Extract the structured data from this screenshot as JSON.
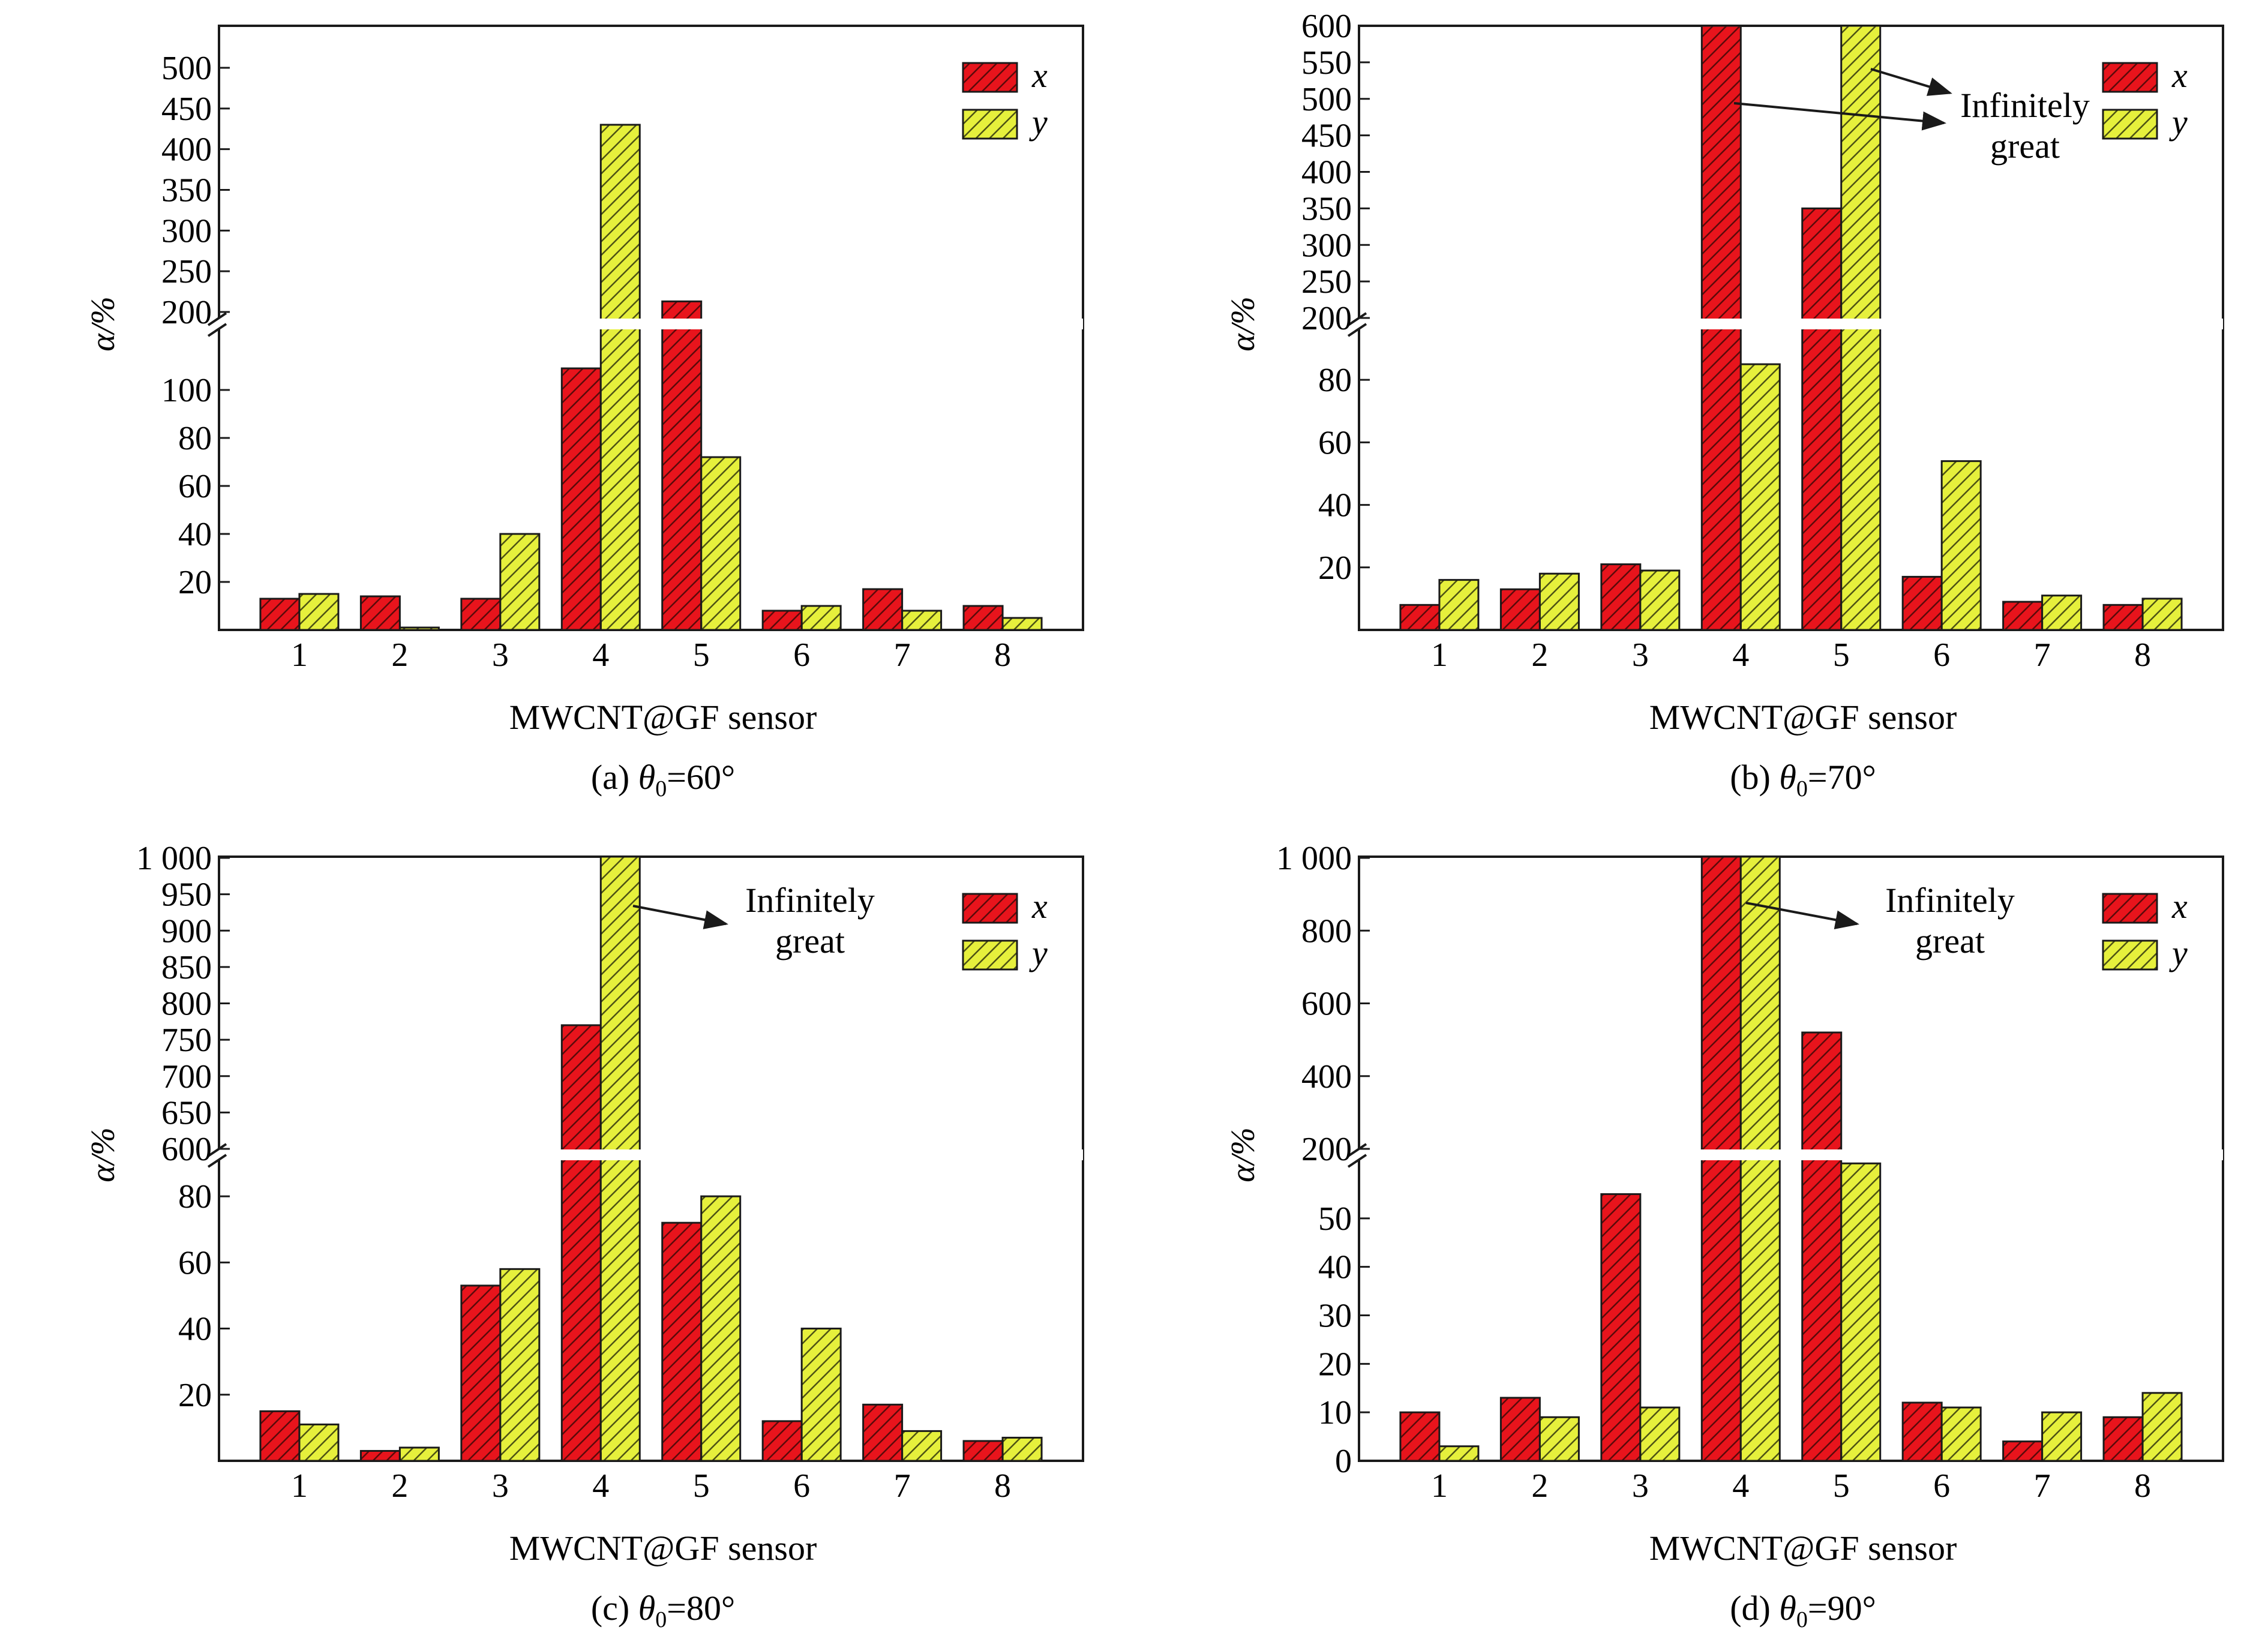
{
  "legend": {
    "x_label": "x",
    "y_label": "y"
  },
  "colors": {
    "x_bar": "#e8141c",
    "y_bar": "#e6f03c",
    "outline": "#1a1a1a",
    "background": "#ffffff"
  },
  "chart_data": [
    {
      "type": "bar",
      "id": "a",
      "caption_prefix": "(a) ",
      "caption_var": "θ",
      "caption_sub": "0",
      "caption_suffix": "=60°",
      "xlabel": "MWCNT@GF sensor",
      "ylabel": "α/%",
      "categories": [
        "1",
        "2",
        "3",
        "4",
        "5",
        "6",
        "7",
        "8"
      ],
      "series": [
        {
          "name": "x",
          "values": [
            13,
            14,
            13,
            109,
            213,
            8,
            17,
            10
          ]
        },
        {
          "name": "y",
          "values": [
            15,
            1,
            40,
            430,
            72,
            10,
            8,
            5
          ]
        }
      ],
      "y_axis_break": {
        "lower_range": [
          0,
          120
        ],
        "lower_ticks": [
          20,
          40,
          60,
          80,
          100
        ],
        "upper_range": [
          200,
          525
        ],
        "upper_ticks": [
          200,
          250,
          300,
          350,
          400,
          450,
          500
        ]
      },
      "annotation": null,
      "legend_position": "top-right"
    },
    {
      "type": "bar",
      "id": "b",
      "caption_prefix": "(b) ",
      "caption_var": "θ",
      "caption_sub": "0",
      "caption_suffix": "=70°",
      "xlabel": "MWCNT@GF sensor",
      "ylabel": "α/%",
      "categories": [
        "1",
        "2",
        "3",
        "4",
        "5",
        "6",
        "7",
        "8"
      ],
      "series": [
        {
          "name": "x",
          "values": [
            8,
            13,
            21,
            600,
            350,
            17,
            9,
            8
          ]
        },
        {
          "name": "y",
          "values": [
            16,
            18,
            19,
            85,
            600,
            54,
            11,
            10
          ]
        }
      ],
      "infinite": {
        "x": [
          4
        ],
        "y": [
          5
        ]
      },
      "y_axis_break": {
        "lower_range": [
          0,
          95
        ],
        "lower_ticks": [
          20,
          40,
          60,
          80
        ],
        "upper_range": [
          200,
          600
        ],
        "upper_ticks": [
          200,
          250,
          300,
          350,
          400,
          450,
          500,
          550,
          600
        ]
      },
      "annotation": {
        "line1": "Infinitely",
        "line2": "great"
      },
      "legend_position": "top-right"
    },
    {
      "type": "bar",
      "id": "c",
      "caption_prefix": "(c) ",
      "caption_var": "θ",
      "caption_sub": "0",
      "caption_suffix": "=80°",
      "xlabel": "MWCNT@GF sensor",
      "ylabel": "α/%",
      "categories": [
        "1",
        "2",
        "3",
        "4",
        "5",
        "6",
        "7",
        "8"
      ],
      "series": [
        {
          "name": "x",
          "values": [
            15,
            3,
            53,
            770,
            72,
            12,
            17,
            6
          ]
        },
        {
          "name": "y",
          "values": [
            11,
            4,
            58,
            1000,
            80,
            40,
            9,
            7
          ]
        }
      ],
      "infinite": {
        "x": [],
        "y": [
          4
        ]
      },
      "y_axis_break": {
        "lower_range": [
          0,
          88
        ],
        "lower_ticks": [
          20,
          40,
          60,
          80
        ],
        "upper_range": [
          600,
          1000
        ],
        "upper_ticks": [
          600,
          650,
          700,
          750,
          800,
          850,
          900,
          950,
          1000
        ],
        "upper_tick_labels": [
          "600",
          "650",
          "700",
          "750",
          "800",
          "850",
          "900",
          "950",
          "1 000"
        ]
      },
      "annotation": {
        "line1": "Infinitely",
        "line2": "great"
      },
      "legend_position": "top-right"
    },
    {
      "type": "bar",
      "id": "d",
      "caption_prefix": "(d) ",
      "caption_var": "θ",
      "caption_sub": "0",
      "caption_suffix": "=90°",
      "xlabel": "MWCNT@GF sensor",
      "ylabel": "α/%",
      "categories": [
        "1",
        "2",
        "3",
        "4",
        "5",
        "6",
        "7",
        "8"
      ],
      "series": [
        {
          "name": "x",
          "values": [
            10,
            13,
            55,
            1000,
            520,
            12,
            4,
            9
          ]
        },
        {
          "name": "y",
          "values": [
            3,
            9,
            11,
            1000,
            160,
            11,
            10,
            14
          ]
        }
      ],
      "infinite": {
        "x": [
          4
        ],
        "y": [
          4
        ]
      },
      "y_axis_break": {
        "lower_range": [
          0,
          60
        ],
        "lower_ticks": [
          0,
          10,
          20,
          30,
          40,
          50
        ],
        "upper_range": [
          100,
          1000
        ],
        "upper_ticks": [
          200,
          400,
          600,
          800,
          1000
        ],
        "upper_tick_labels": [
          "200",
          "400",
          "600",
          "800",
          "1 000"
        ]
      },
      "annotation": {
        "line1": "Infinitely",
        "line2": "great"
      },
      "legend_position": "top-right"
    }
  ]
}
